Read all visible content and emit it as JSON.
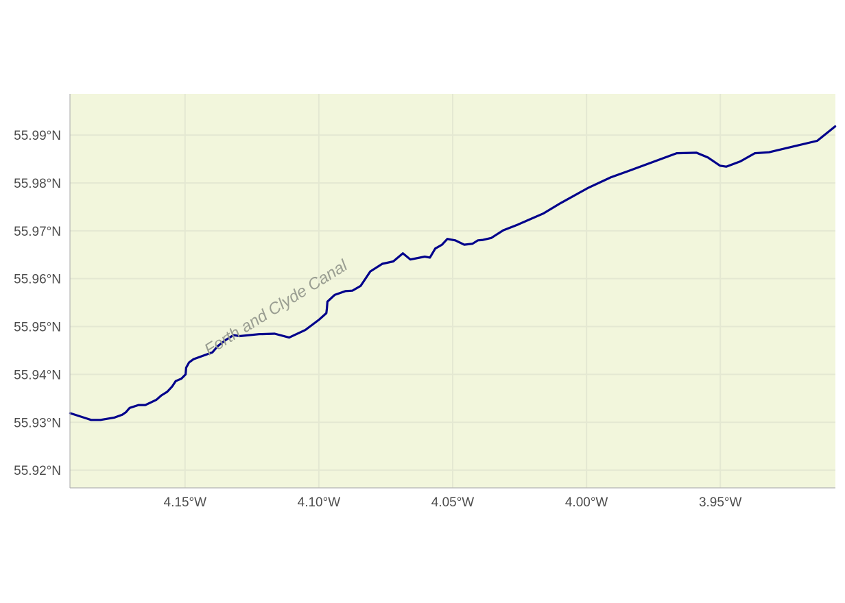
{
  "map": {
    "background_color": "#f2f6dc",
    "grid_color": "#e4e8d2",
    "line_color": "#00008b",
    "label_color": "#9a9e92",
    "xlim": [
      -4.193,
      -3.907
    ],
    "ylim": [
      55.9163,
      55.9986
    ],
    "x_ticks": [
      {
        "value": -4.15,
        "label": "4.15°W"
      },
      {
        "value": -4.1,
        "label": "4.10°W"
      },
      {
        "value": -4.05,
        "label": "4.05°W"
      },
      {
        "value": -4.0,
        "label": "4.00°W"
      },
      {
        "value": -3.95,
        "label": "3.95°W"
      }
    ],
    "y_ticks": [
      {
        "value": 55.92,
        "label": "55.92°N"
      },
      {
        "value": 55.93,
        "label": "55.93°N"
      },
      {
        "value": 55.94,
        "label": "55.94°N"
      },
      {
        "value": 55.95,
        "label": "55.95°N"
      },
      {
        "value": 55.96,
        "label": "55.96°N"
      },
      {
        "value": 55.97,
        "label": "55.97°N"
      },
      {
        "value": 55.98,
        "label": "55.98°N"
      },
      {
        "value": 55.99,
        "label": "55.99°N"
      }
    ],
    "feature_label": {
      "text": "Forth and Clyde Canal",
      "lon": -4.115,
      "lat": 55.953,
      "angle": -32
    },
    "canal_path": [
      [
        -4.1929,
        55.9319
      ],
      [
        -4.1851,
        55.9305
      ],
      [
        -4.1816,
        55.9305
      ],
      [
        -4.1763,
        55.931
      ],
      [
        -4.1734,
        55.9316
      ],
      [
        -4.1721,
        55.9321
      ],
      [
        -4.1707,
        55.933
      ],
      [
        -4.1674,
        55.9336
      ],
      [
        -4.1648,
        55.9336
      ],
      [
        -4.1607,
        55.9347
      ],
      [
        -4.1589,
        55.9356
      ],
      [
        -4.1566,
        55.9364
      ],
      [
        -4.1548,
        55.9375
      ],
      [
        -4.1535,
        55.9386
      ],
      [
        -4.1514,
        55.9391
      ],
      [
        -4.1498,
        55.94
      ],
      [
        -4.1496,
        55.9414
      ],
      [
        -4.1485,
        55.9425
      ],
      [
        -4.1468,
        55.9432
      ],
      [
        -4.1398,
        55.9446
      ],
      [
        -4.1378,
        55.9459
      ],
      [
        -4.1348,
        55.9472
      ],
      [
        -4.1319,
        55.9482
      ],
      [
        -4.1296,
        55.948
      ],
      [
        -4.1224,
        55.9484
      ],
      [
        -4.1165,
        55.9485
      ],
      [
        -4.1111,
        55.9477
      ],
      [
        -4.105,
        55.9493
      ],
      [
        -4.0998,
        55.9515
      ],
      [
        -4.0972,
        55.9528
      ],
      [
        -4.097,
        55.9538
      ],
      [
        -4.0968,
        55.9552
      ],
      [
        -4.0941,
        55.9566
      ],
      [
        -4.09,
        55.9574
      ],
      [
        -4.0875,
        55.9575
      ],
      [
        -4.0844,
        55.9585
      ],
      [
        -4.0808,
        55.9615
      ],
      [
        -4.0763,
        55.9631
      ],
      [
        -4.0722,
        55.9636
      ],
      [
        -4.0686,
        55.9653
      ],
      [
        -4.0658,
        55.964
      ],
      [
        -4.0604,
        55.9646
      ],
      [
        -4.0585,
        55.9644
      ],
      [
        -4.0565,
        55.9663
      ],
      [
        -4.054,
        55.9671
      ],
      [
        -4.052,
        55.9683
      ],
      [
        -4.049,
        55.968
      ],
      [
        -4.0457,
        55.9671
      ],
      [
        -4.0426,
        55.9673
      ],
      [
        -4.0406,
        55.968
      ],
      [
        -4.0387,
        55.9681
      ],
      [
        -4.0356,
        55.9685
      ],
      [
        -4.0311,
        55.9701
      ],
      [
        -4.0256,
        55.9713
      ],
      [
        -4.0219,
        55.9722
      ],
      [
        -4.0162,
        55.9736
      ],
      [
        -4.0096,
        55.9758
      ],
      [
        -3.9996,
        55.9789
      ],
      [
        -3.9908,
        55.9812
      ],
      [
        -3.9843,
        55.9825
      ],
      [
        -3.9663,
        55.9862
      ],
      [
        -3.9589,
        55.9863
      ],
      [
        -3.9546,
        55.9853
      ],
      [
        -3.9501,
        55.9836
      ],
      [
        -3.9478,
        55.9834
      ],
      [
        -3.9425,
        55.9845
      ],
      [
        -3.9371,
        55.9862
      ],
      [
        -3.9318,
        55.9864
      ],
      [
        -3.9236,
        55.9875
      ],
      [
        -3.9138,
        55.9888
      ],
      [
        -3.9071,
        55.9918
      ]
    ]
  }
}
